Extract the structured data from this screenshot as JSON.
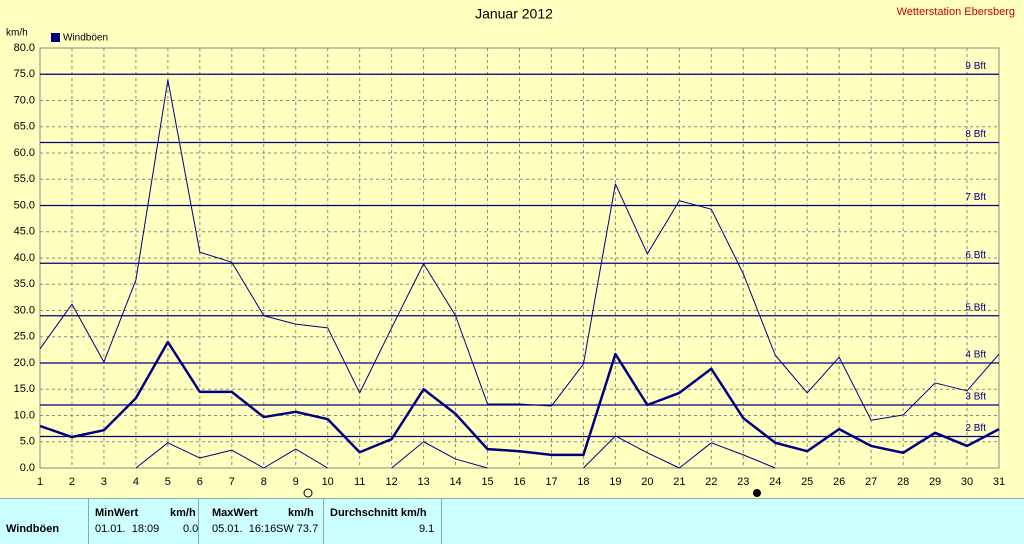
{
  "chart_data": {
    "type": "line",
    "title": "Januar 2012",
    "station": "Wetterstation Ebersberg",
    "ylabel": "km/h",
    "legend": "Windböen",
    "legend_color": "#000080",
    "x": [
      1,
      2,
      3,
      4,
      5,
      6,
      7,
      8,
      9,
      10,
      11,
      12,
      13,
      14,
      15,
      16,
      17,
      18,
      19,
      20,
      21,
      22,
      23,
      24,
      25,
      26,
      27,
      28,
      29,
      30,
      31
    ],
    "xlim": [
      1,
      31
    ],
    "xticks": [
      1,
      2,
      3,
      4,
      5,
      6,
      7,
      8,
      9,
      10,
      11,
      12,
      13,
      14,
      15,
      16,
      17,
      18,
      19,
      20,
      21,
      22,
      23,
      24,
      25,
      26,
      27,
      28,
      29,
      30,
      31
    ],
    "ylim": [
      0,
      80
    ],
    "yticks": [
      {
        "value": 0,
        "label": "0.0"
      },
      {
        "value": 5,
        "label": "5.0"
      },
      {
        "value": 10,
        "label": "10.0"
      },
      {
        "value": 15,
        "label": "15.0"
      },
      {
        "value": 20,
        "label": "20.0"
      },
      {
        "value": 25,
        "label": "25.0"
      },
      {
        "value": 30,
        "label": "30.0"
      },
      {
        "value": 35,
        "label": "35.0"
      },
      {
        "value": 40,
        "label": "40.0"
      },
      {
        "value": 45,
        "label": "45.0"
      },
      {
        "value": 50,
        "label": "50.0"
      },
      {
        "value": 55,
        "label": "55.0"
      },
      {
        "value": 60,
        "label": "60.0"
      },
      {
        "value": 65,
        "label": "65.0"
      },
      {
        "value": 70,
        "label": "70.0"
      },
      {
        "value": 75,
        "label": "75.0"
      },
      {
        "value": 80,
        "label": "80.0"
      }
    ],
    "grid": true,
    "series": [
      {
        "color": "#000080",
        "width": 1,
        "values": [
          22.7,
          31.2,
          20.2,
          35.8,
          73.9,
          41.1,
          39.2,
          29.0,
          27.4,
          26.7,
          14.3,
          26.7,
          38.9,
          29.0,
          12.2,
          12.2,
          11.8,
          19.8,
          54.1,
          40.8,
          50.9,
          49.3,
          37.0,
          21.5,
          14.3,
          21.1,
          9.1,
          10.1,
          16.2,
          14.7,
          21.7
        ]
      },
      {
        "color": "#000080",
        "width": 2.5,
        "values": [
          8.0,
          5.9,
          7.2,
          13.3,
          24.0,
          14.5,
          14.5,
          9.7,
          10.7,
          9.3,
          3.0,
          5.5,
          15.0,
          10.3,
          3.6,
          3.2,
          2.5,
          2.5,
          21.7,
          12.0,
          14.3,
          18.9,
          9.5,
          4.8,
          3.2,
          7.4,
          4.2,
          2.9,
          6.7,
          4.2,
          7.4
        ]
      },
      {
        "color": "#000080",
        "width": 1,
        "values": [
          null,
          null,
          null,
          0,
          4.8,
          1.9,
          3.4,
          0,
          3.6,
          0,
          null,
          0,
          5.0,
          1.7,
          0,
          null,
          null,
          0,
          6.1,
          2.9,
          0,
          4.8,
          2.5,
          0,
          null,
          null,
          null,
          null,
          null,
          null,
          null
        ]
      }
    ],
    "annotations": [
      {
        "label": "2 Bft",
        "value": 6
      },
      {
        "label": "3 Bft",
        "value": 12
      },
      {
        "label": "4 Bft",
        "value": 20
      },
      {
        "label": "5 Bft",
        "value": 29
      },
      {
        "label": "6 Bft",
        "value": 39
      },
      {
        "label": "7 Bft",
        "value": 50
      },
      {
        "label": "8 Bft",
        "value": 62
      },
      {
        "label": "9 Bft",
        "value": 75
      }
    ]
  },
  "table": {
    "headers": [
      "MinWert",
      "km/h",
      "MaxWert",
      "km/h",
      "Durchschnitt km/h"
    ],
    "rows": [
      {
        "label": "Windböen",
        "cells": [
          "01.01.  18:09",
          "0.0",
          "05.01.  16:16",
          "SW 73.7",
          "9.1"
        ]
      }
    ]
  }
}
